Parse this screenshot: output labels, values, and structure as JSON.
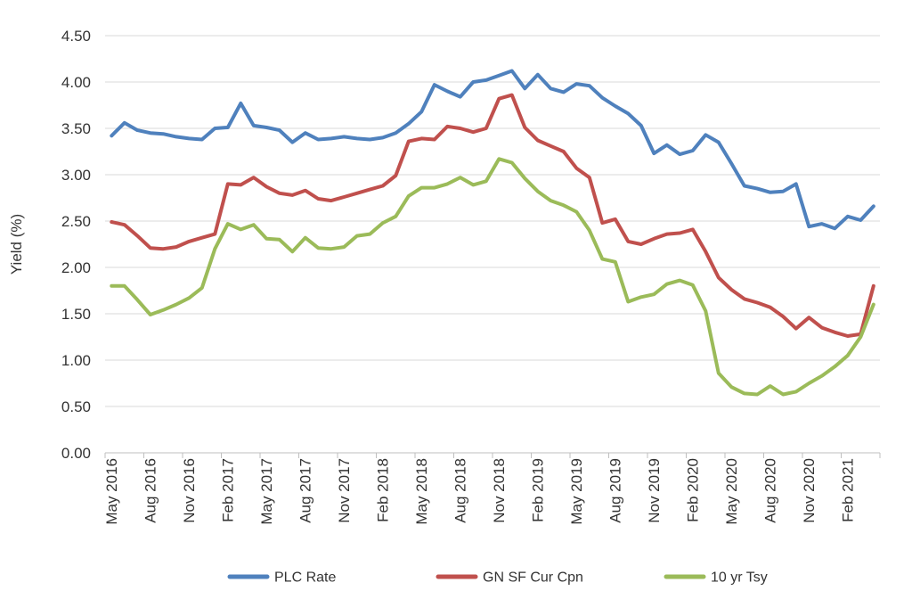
{
  "chart_data": {
    "type": "line",
    "title": "",
    "ylabel": "Yield (%)",
    "ylim": [
      0,
      4.5
    ],
    "ytick_step": 0.5,
    "ytick_format_decimals": 2,
    "x_label_every": 3,
    "grid": "horizontal",
    "legend_position": "bottom",
    "colors": {
      "gridline": "#D9D9D9",
      "axis": "#BFBFBF",
      "text": "#333333",
      "background": "#FFFFFF"
    },
    "x": [
      "May 2016",
      "Jun 2016",
      "Jul 2016",
      "Aug 2016",
      "Sep 2016",
      "Oct 2016",
      "Nov 2016",
      "Dec 2016",
      "Jan 2017",
      "Feb 2017",
      "Mar 2017",
      "Apr 2017",
      "May 2017",
      "Jun 2017",
      "Jul 2017",
      "Aug 2017",
      "Sep 2017",
      "Oct 2017",
      "Nov 2017",
      "Dec 2017",
      "Jan 2018",
      "Feb 2018",
      "Mar 2018",
      "Apr 2018",
      "May 2018",
      "Jun 2018",
      "Jul 2018",
      "Aug 2018",
      "Sep 2018",
      "Oct 2018",
      "Nov 2018",
      "Dec 2018",
      "Jan 2019",
      "Feb 2019",
      "Mar 2019",
      "Apr 2019",
      "May 2019",
      "Jun 2019",
      "Jul 2019",
      "Aug 2019",
      "Sep 2019",
      "Oct 2019",
      "Nov 2019",
      "Dec 2019",
      "Jan 2020",
      "Feb 2020",
      "Mar 2020",
      "Apr 2020",
      "May 2020",
      "Jun 2020",
      "Jul 2020",
      "Aug 2020",
      "Sep 2020",
      "Oct 2020",
      "Nov 2020",
      "Dec 2020",
      "Jan 2021",
      "Feb 2021",
      "Mar 2021",
      "Apr 2021"
    ],
    "series": [
      {
        "name": "PLC Rate",
        "color": "#4F81BD",
        "values": [
          3.42,
          3.56,
          3.48,
          3.45,
          3.44,
          3.41,
          3.39,
          3.38,
          3.5,
          3.51,
          3.77,
          3.53,
          3.51,
          3.48,
          3.35,
          3.45,
          3.38,
          3.39,
          3.41,
          3.39,
          3.38,
          3.4,
          3.45,
          3.55,
          3.68,
          3.97,
          3.9,
          3.84,
          4.0,
          4.02,
          4.07,
          4.12,
          3.93,
          4.08,
          3.93,
          3.89,
          3.98,
          3.96,
          3.83,
          3.74,
          3.66,
          3.53,
          3.23,
          3.32,
          3.22,
          3.26,
          3.43,
          3.35,
          3.12,
          2.88,
          2.85,
          2.81,
          2.82,
          2.9,
          2.44,
          2.47,
          2.42,
          2.55,
          2.51,
          2.66
        ]
      },
      {
        "name": "GN SF Cur Cpn",
        "color": "#C0504D",
        "values": [
          2.49,
          2.46,
          2.34,
          2.21,
          2.2,
          2.22,
          2.28,
          2.32,
          2.36,
          2.9,
          2.89,
          2.97,
          2.87,
          2.8,
          2.78,
          2.83,
          2.74,
          2.72,
          2.76,
          2.8,
          2.84,
          2.88,
          2.99,
          3.36,
          3.39,
          3.38,
          3.52,
          3.5,
          3.46,
          3.5,
          3.82,
          3.86,
          3.51,
          3.37,
          3.31,
          3.25,
          3.07,
          2.97,
          2.48,
          2.52,
          2.28,
          2.25,
          2.31,
          2.36,
          2.37,
          2.41,
          2.17,
          1.89,
          1.76,
          1.66,
          1.62,
          1.57,
          1.47,
          1.34,
          1.46,
          1.35,
          1.3,
          1.26,
          1.28,
          1.8
        ]
      },
      {
        "name": "10 yr Tsy",
        "color": "#9BBB59",
        "values": [
          1.8,
          1.8,
          1.65,
          1.49,
          1.54,
          1.6,
          1.67,
          1.78,
          2.2,
          2.47,
          2.41,
          2.46,
          2.31,
          2.3,
          2.17,
          2.32,
          2.21,
          2.2,
          2.22,
          2.34,
          2.36,
          2.48,
          2.55,
          2.77,
          2.86,
          2.86,
          2.9,
          2.97,
          2.89,
          2.93,
          3.17,
          3.13,
          2.96,
          2.82,
          2.72,
          2.67,
          2.6,
          2.4,
          2.09,
          2.06,
          1.63,
          1.68,
          1.71,
          1.82,
          1.86,
          1.81,
          1.53,
          0.86,
          0.71,
          0.64,
          0.63,
          0.72,
          0.63,
          0.66,
          0.75,
          0.83,
          0.93,
          1.05,
          1.25,
          1.6
        ]
      }
    ]
  },
  "legend": {
    "items": [
      "PLC Rate",
      "GN SF Cur Cpn",
      "10 yr Tsy"
    ]
  }
}
